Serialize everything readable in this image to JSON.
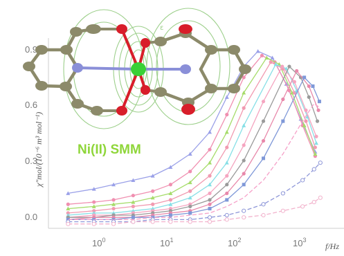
{
  "chart_data": {
    "type": "scatter",
    "title": "",
    "xlabel": "f/Hz",
    "ylabel": "χ″mol/(10⁻⁶ m³ mol⁻¹)",
    "xscale": "log",
    "xlim": [
      0.2,
      3000
    ],
    "ylim": [
      -0.02,
      0.85
    ],
    "xticks": [
      {
        "base": "10",
        "exp": "0"
      },
      {
        "base": "10",
        "exp": "1"
      },
      {
        "base": "10",
        "exp": "2"
      },
      {
        "base": "10",
        "exp": "3"
      }
    ],
    "yticks": [
      "0.0",
      "0.3",
      "0.6",
      "0.9"
    ],
    "grid": false,
    "legend": "none",
    "annotation": "Ni(II) SMM",
    "series": [
      {
        "color": "#9aa0e8",
        "marker": "triangle",
        "peak_f": 330,
        "peak_y": 0.79,
        "base": 0.12,
        "x": [
          0.4,
          1,
          2,
          4,
          8,
          15,
          30,
          60,
          110,
          200,
          330,
          550,
          900,
          1500,
          2500
        ],
        "y": [
          0.14,
          0.16,
          0.18,
          0.2,
          0.22,
          0.26,
          0.32,
          0.42,
          0.58,
          0.72,
          0.79,
          0.76,
          0.64,
          0.48,
          0.33
        ]
      },
      {
        "color": "#f08fb0",
        "marker": "circle",
        "peak_f": 380,
        "peak_y": 0.77,
        "base": 0.08,
        "x": [
          0.4,
          1,
          2,
          4,
          8,
          15,
          30,
          60,
          110,
          200,
          380,
          600,
          1000,
          1600,
          2500
        ],
        "y": [
          0.09,
          0.1,
          0.11,
          0.13,
          0.15,
          0.18,
          0.24,
          0.34,
          0.5,
          0.67,
          0.77,
          0.74,
          0.61,
          0.45,
          0.31
        ]
      },
      {
        "color": "#a6dc6a",
        "marker": "triangle",
        "peak_f": 450,
        "peak_y": 0.76,
        "base": 0.06,
        "x": [
          0.4,
          1,
          2,
          4,
          8,
          15,
          30,
          60,
          110,
          200,
          450,
          700,
          1100,
          1700,
          2500
        ],
        "y": [
          0.07,
          0.08,
          0.09,
          0.1,
          0.12,
          0.14,
          0.19,
          0.28,
          0.42,
          0.6,
          0.76,
          0.73,
          0.6,
          0.45,
          0.32
        ]
      },
      {
        "color": "#f19ab0",
        "marker": "circle",
        "peak_f": 520,
        "peak_y": 0.74,
        "base": 0.05,
        "x": [
          0.4,
          1,
          2,
          4,
          8,
          15,
          30,
          60,
          110,
          200,
          520,
          800,
          1200,
          1800,
          2500
        ],
        "y": [
          0.05,
          0.06,
          0.07,
          0.08,
          0.09,
          0.11,
          0.15,
          0.22,
          0.35,
          0.53,
          0.74,
          0.71,
          0.6,
          0.47,
          0.35
        ]
      },
      {
        "color": "#86dfe6",
        "marker": "triangle",
        "peak_f": 620,
        "peak_y": 0.73,
        "base": 0.04,
        "x": [
          0.4,
          1,
          2,
          4,
          8,
          15,
          30,
          60,
          110,
          200,
          620,
          900,
          1300,
          1900,
          2600
        ],
        "y": [
          0.04,
          0.05,
          0.05,
          0.06,
          0.07,
          0.09,
          0.12,
          0.18,
          0.28,
          0.45,
          0.73,
          0.71,
          0.61,
          0.49,
          0.37
        ]
      },
      {
        "color": "#f5a5c0",
        "marker": "circle",
        "peak_f": 780,
        "peak_y": 0.72,
        "base": 0.03,
        "x": [
          0.4,
          1,
          2,
          4,
          8,
          15,
          30,
          60,
          110,
          200,
          400,
          780,
          1200,
          1800,
          2600
        ],
        "y": [
          0.03,
          0.04,
          0.04,
          0.05,
          0.06,
          0.07,
          0.09,
          0.14,
          0.22,
          0.36,
          0.56,
          0.72,
          0.65,
          0.52,
          0.4
        ]
      },
      {
        "color": "#9a9a9a",
        "marker": "circle",
        "peak_f": 1000,
        "peak_y": 0.72,
        "base": 0.03,
        "x": [
          0.4,
          1,
          2,
          4,
          8,
          15,
          30,
          60,
          110,
          200,
          400,
          1000,
          1500,
          2000,
          2700
        ],
        "y": [
          0.03,
          0.03,
          0.04,
          0.04,
          0.05,
          0.06,
          0.08,
          0.11,
          0.18,
          0.29,
          0.47,
          0.72,
          0.67,
          0.58,
          0.47
        ]
      },
      {
        "color": "#e888aa",
        "marker": "circle",
        "peak_f": 1300,
        "peak_y": 0.7,
        "base": 0.02,
        "x": [
          0.4,
          1,
          2,
          4,
          8,
          15,
          30,
          60,
          110,
          200,
          400,
          800,
          1300,
          2000,
          2800
        ],
        "y": [
          0.02,
          0.03,
          0.03,
          0.03,
          0.04,
          0.05,
          0.06,
          0.09,
          0.14,
          0.23,
          0.38,
          0.57,
          0.7,
          0.63,
          0.52
        ]
      },
      {
        "color": "#7f98d8",
        "marker": "square",
        "peak_f": 1700,
        "peak_y": 0.67,
        "base": 0.02,
        "x": [
          0.4,
          1,
          2,
          4,
          8,
          15,
          30,
          60,
          110,
          200,
          400,
          800,
          1700,
          2300,
          2900
        ],
        "y": [
          0.02,
          0.02,
          0.02,
          0.03,
          0.03,
          0.04,
          0.05,
          0.07,
          0.11,
          0.18,
          0.3,
          0.47,
          0.67,
          0.63,
          0.56
        ]
      },
      {
        "color": "#f6a0c8",
        "marker": "none",
        "peak_f": 2400,
        "peak_y": 0.55,
        "base": 0.02,
        "x": [
          0.4,
          1,
          2,
          4,
          8,
          15,
          30,
          60,
          110,
          200,
          400,
          800,
          1600,
          2400,
          3000
        ],
        "y": [
          0.02,
          0.02,
          0.02,
          0.02,
          0.03,
          0.03,
          0.04,
          0.05,
          0.08,
          0.12,
          0.2,
          0.32,
          0.47,
          0.55,
          0.53
        ]
      },
      {
        "color": "#8d96d8",
        "marker": "open-circle",
        "peak_f": 3000,
        "peak_y": 0.28,
        "base": 0.01,
        "x": [
          0.4,
          1,
          2,
          4,
          8,
          15,
          30,
          60,
          110,
          200,
          400,
          800,
          1600,
          2400,
          3000
        ],
        "y": [
          0.01,
          0.01,
          0.01,
          0.01,
          0.02,
          0.02,
          0.02,
          0.03,
          0.04,
          0.06,
          0.09,
          0.14,
          0.2,
          0.25,
          0.28
        ]
      },
      {
        "color": "#f2b2cc",
        "marker": "open-circle",
        "peak_f": 3000,
        "peak_y": 0.12,
        "base": 0.0,
        "x": [
          0.4,
          1,
          2,
          4,
          8,
          15,
          30,
          60,
          110,
          200,
          400,
          800,
          1600,
          2400,
          3000
        ],
        "y": [
          0.0,
          0.0,
          0.0,
          0.01,
          0.01,
          0.01,
          0.01,
          0.01,
          0.02,
          0.03,
          0.04,
          0.06,
          0.08,
          0.1,
          0.12
        ]
      }
    ]
  },
  "molecule": {
    "colors": {
      "carbon": "#8c8a6a",
      "nitrogen": "#8a8fd8",
      "oxygen": "#d81e2a",
      "nickel": "#39d136",
      "contour": "#9ccf8a"
    },
    "contour_label": "ε"
  }
}
